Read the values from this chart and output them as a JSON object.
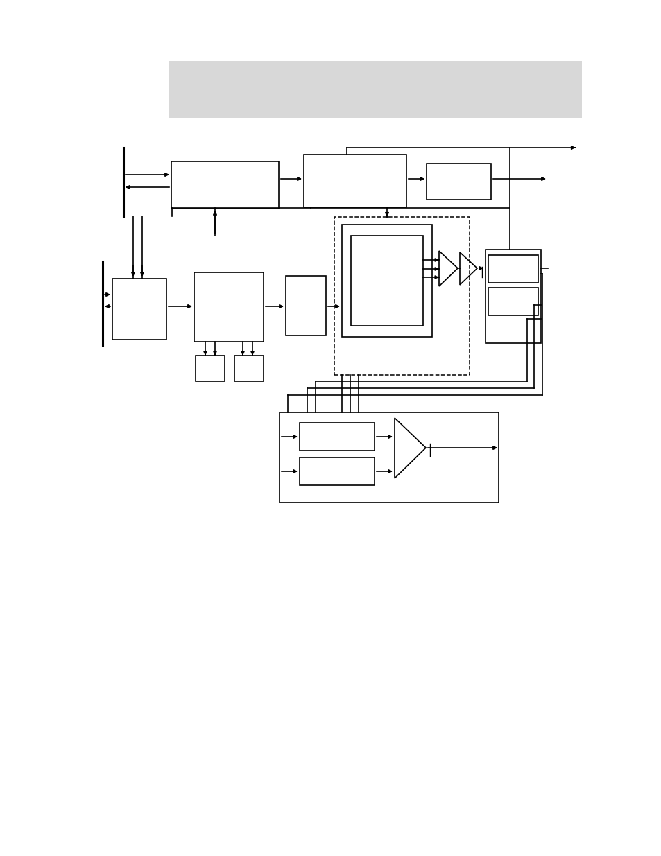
{
  "fig_width": 9.54,
  "fig_height": 12.35,
  "bg_color": "#ffffff",
  "header_color": "#d8d8d8",
  "lw": 1.2
}
